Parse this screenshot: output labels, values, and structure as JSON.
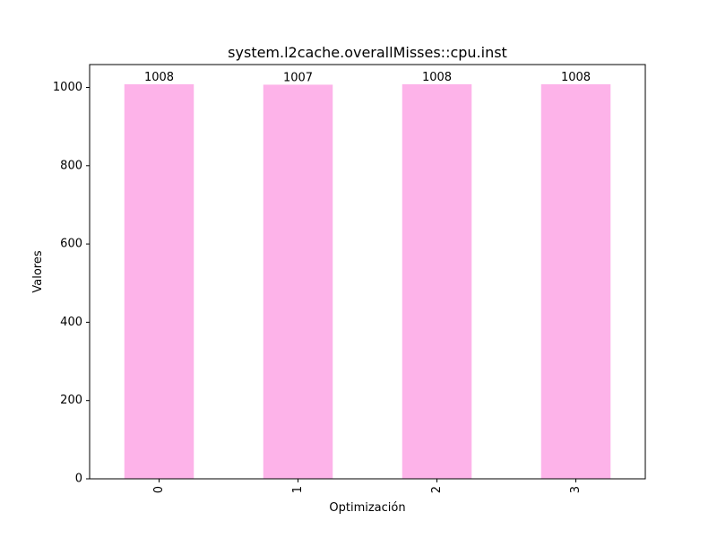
{
  "chart_data": {
    "type": "bar",
    "title": "system.l2cache.overallMisses::cpu.inst",
    "xlabel": "Optimización",
    "ylabel": "Valores",
    "categories": [
      "0",
      "1",
      "2",
      "3"
    ],
    "values": [
      1008,
      1007,
      1008,
      1008
    ],
    "data_labels": [
      "1008",
      "1007",
      "1008",
      "1008"
    ],
    "ylim": [
      0,
      1058.4
    ],
    "yticks": [
      0,
      200,
      400,
      600,
      800,
      1000
    ],
    "ytick_labels": [
      "0",
      "200",
      "400",
      "600",
      "800",
      "1000"
    ],
    "bar_color": "#fdb3e9",
    "grid": false,
    "legend": "none",
    "xtick_rotation": "vertical"
  }
}
